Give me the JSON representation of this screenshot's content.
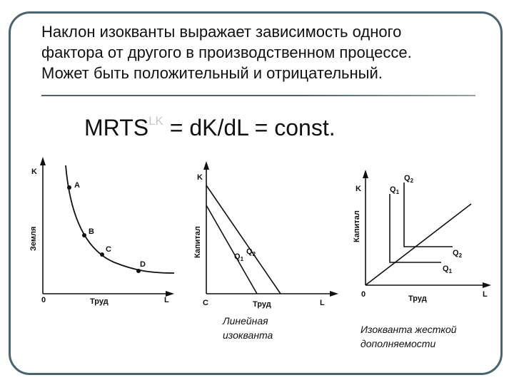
{
  "intro": {
    "line1": "Наклон изокванты выражает зависимость одного",
    "line2": "фактора от другого в производственном процессе.",
    "line3": "Может быть положительный и отрицательный."
  },
  "formula": {
    "main": "MRTS",
    "superscript": "LK",
    "rest": " = dK/dL  = const."
  },
  "colors": {
    "frame": "#4a6470",
    "ink": "#111111",
    "superscript": "#c4c9cc"
  },
  "graph1": {
    "y_axis": "K",
    "y_label": "Земля",
    "origin": "0",
    "x_axis": "L",
    "x_label": "Труд",
    "points": [
      "A",
      "B",
      "C",
      "D"
    ]
  },
  "graph2": {
    "y_axis": "K",
    "y_label": "Капитал",
    "origin": "C",
    "x_axis": "L",
    "x_label": "Труд",
    "curves": [
      {
        "label": "Q",
        "sub": "1"
      },
      {
        "label": "Q",
        "sub": "2"
      }
    ],
    "caption_line1": "Линейная",
    "caption_line2": "изокванта"
  },
  "graph3": {
    "y_axis": "K",
    "y_label": "Капитал",
    "origin": "0",
    "x_axis": "L",
    "x_label": "Труд",
    "curves_top": [
      {
        "label": "Q",
        "sub": "1"
      },
      {
        "label": "Q",
        "sub": "2"
      }
    ],
    "curves_right": [
      {
        "label": "Q",
        "sub": "2"
      },
      {
        "label": "Q",
        "sub": "1"
      }
    ],
    "caption_line1": "Изокванта жесткой",
    "caption_line2": "дополняемости"
  }
}
